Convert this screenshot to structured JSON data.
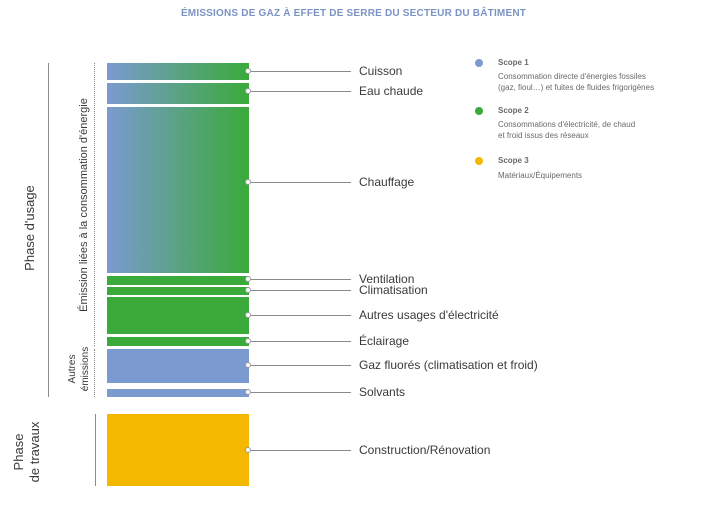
{
  "title": "ÉMISSIONS DE GAZ À EFFET DE SERRE DU SECTEUR DU BÂTIMENT",
  "colors": {
    "scope1": "#7b9ad0",
    "scope2": "#3aaa3a",
    "scope3": "#f5b800"
  },
  "phases": {
    "usage": "Phase d'usage",
    "travaux_line1": "Phase",
    "travaux_line2": "de travaux"
  },
  "groups": {
    "energie": "Émission liées à la consommation d'énergie",
    "autres_line1": "Autres",
    "autres_line2": "émissions"
  },
  "segments": [
    {
      "label": "Cuisson"
    },
    {
      "label": "Eau chaude"
    },
    {
      "label": "Chauffage"
    },
    {
      "label": "Ventilation"
    },
    {
      "label": "Climatisation"
    },
    {
      "label": "Autres usages d'électricité"
    },
    {
      "label": "Éclairage"
    },
    {
      "label": "Gaz fluorés (climatisation et froid)"
    },
    {
      "label": "Solvants"
    },
    {
      "label": "Construction/Rénovation"
    }
  ],
  "legend": [
    {
      "title": "Scope 1",
      "desc_line1": "Consommation directe d'énergies fossiles",
      "desc_line2": "(gaz, fioul…) et fuites de fluides frigorigènes"
    },
    {
      "title": "Scope 2",
      "desc_line1": "Consommations d'électricité, de chaud",
      "desc_line2": "et froid issus des réseaux"
    },
    {
      "title": "Scope 3",
      "desc_line1": "Matériaux/Équipements",
      "desc_line2": ""
    }
  ]
}
